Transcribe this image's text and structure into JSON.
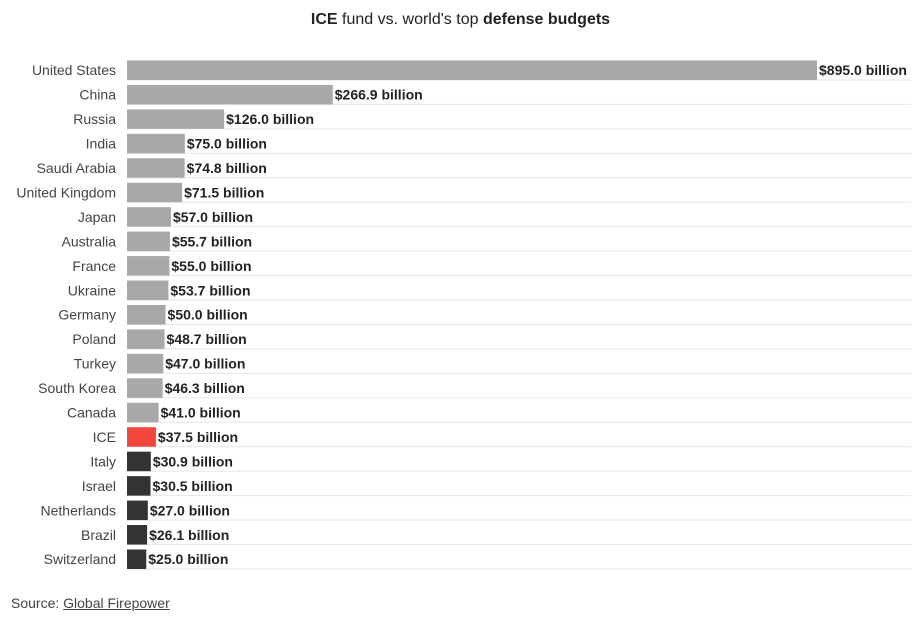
{
  "title": {
    "part1": "ICE",
    "part2": " fund vs. world's top ",
    "part3": "defense budgets"
  },
  "source": {
    "label": "Source: ",
    "link_text": "Global Firepower"
  },
  "colors": {
    "countries_above": "#a8a8a8",
    "ice": "#f2473c",
    "countries_below": "#333333",
    "gridline": "#e6e6e6"
  },
  "chart_data": {
    "type": "bar",
    "orientation": "horizontal",
    "title": "ICE fund vs. world's top defense budgets",
    "unit": "billion USD",
    "categories": [
      "United States",
      "China",
      "Russia",
      "India",
      "Saudi Arabia",
      "United Kingdom",
      "Japan",
      "Australia",
      "France",
      "Ukraine",
      "Germany",
      "Poland",
      "Turkey",
      "South Korea",
      "Canada",
      "ICE",
      "Italy",
      "Israel",
      "Netherlands",
      "Brazil",
      "Switzerland"
    ],
    "values": [
      895.0,
      266.9,
      126.0,
      75.0,
      74.8,
      71.5,
      57.0,
      55.7,
      55.0,
      53.7,
      50.0,
      48.7,
      47.0,
      46.3,
      41.0,
      37.5,
      30.9,
      30.5,
      27.0,
      26.1,
      25.0
    ],
    "value_labels": [
      "$895.0 billion",
      "$266.9 billion",
      "$126.0 billion",
      "$75.0 billion",
      "$74.8 billion",
      "$71.5 billion",
      "$57.0 billion",
      "$55.7 billion",
      "$55.0 billion",
      "$53.7 billion",
      "$50.0 billion",
      "$48.7 billion",
      "$47.0 billion",
      "$46.3 billion",
      "$41.0 billion",
      "$37.5 billion",
      "$30.9 billion",
      "$30.5 billion",
      "$27.0 billion",
      "$26.1 billion",
      "$25.0 billion"
    ],
    "bar_colors": [
      "#a8a8a8",
      "#a8a8a8",
      "#a8a8a8",
      "#a8a8a8",
      "#a8a8a8",
      "#a8a8a8",
      "#a8a8a8",
      "#a8a8a8",
      "#a8a8a8",
      "#a8a8a8",
      "#a8a8a8",
      "#a8a8a8",
      "#a8a8a8",
      "#a8a8a8",
      "#a8a8a8",
      "#f2473c",
      "#333333",
      "#333333",
      "#333333",
      "#333333",
      "#333333"
    ],
    "xlim": [
      0,
      895
    ],
    "grid": "horizontal row lines",
    "legend": "none"
  }
}
